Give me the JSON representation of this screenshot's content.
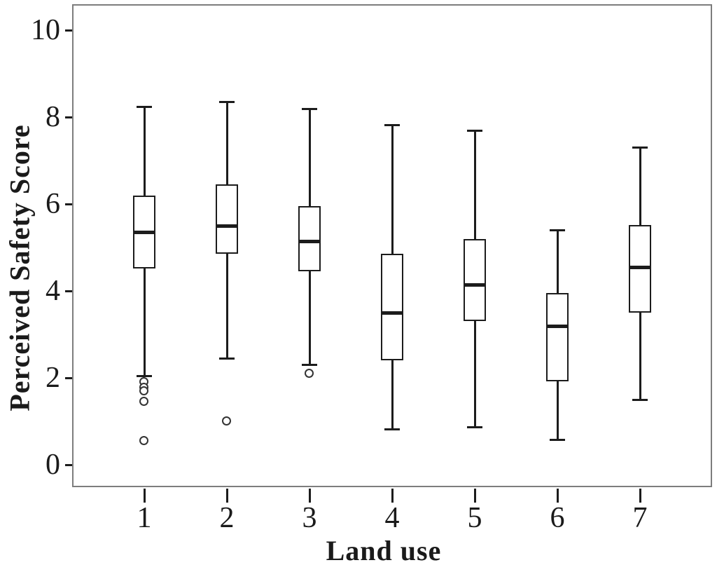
{
  "figure": {
    "type_label": "Box plot of Perceived Safety Score by Land use category"
  },
  "chart_data": {
    "type": "boxplot",
    "title": "",
    "xlabel": "Land use",
    "ylabel": "Perceived Safety Score",
    "ylim": [
      -0.9,
      10.6
    ],
    "y_ticks": [
      "0",
      "2",
      "4",
      "6",
      "8",
      "10"
    ],
    "y_tick_values": [
      0,
      2,
      4,
      6,
      8,
      10
    ],
    "grid": "off",
    "legend": "none",
    "categories": [
      "1",
      "2",
      "3",
      "4",
      "5",
      "6",
      "7"
    ],
    "series": [
      {
        "category": "1",
        "whisker_low": 2.05,
        "q1": 4.52,
        "median": 5.35,
        "q3": 6.2,
        "whisker_high": 8.25,
        "outliers": [
          1.9,
          1.78,
          1.7,
          1.45,
          0.55
        ]
      },
      {
        "category": "2",
        "whisker_low": 2.45,
        "q1": 4.85,
        "median": 5.5,
        "q3": 6.45,
        "whisker_high": 8.35,
        "outliers": [
          1.0
        ]
      },
      {
        "category": "3",
        "whisker_low": 2.3,
        "q1": 4.45,
        "median": 5.15,
        "q3": 5.95,
        "whisker_high": 8.2,
        "outliers": [
          2.1
        ]
      },
      {
        "category": "4",
        "whisker_low": 0.82,
        "q1": 2.4,
        "median": 3.5,
        "q3": 4.85,
        "whisker_high": 7.82,
        "outliers": []
      },
      {
        "category": "5",
        "whisker_low": 0.87,
        "q1": 3.3,
        "median": 4.15,
        "q3": 5.2,
        "whisker_high": 7.7,
        "outliers": []
      },
      {
        "category": "6",
        "whisker_low": 0.58,
        "q1": 1.92,
        "median": 3.2,
        "q3": 3.95,
        "whisker_high": 5.4,
        "outliers": []
      },
      {
        "category": "7",
        "whisker_low": 1.5,
        "q1": 3.5,
        "median": 4.55,
        "q3": 5.52,
        "whisker_high": 7.3,
        "outliers": []
      }
    ],
    "colors": {
      "line": "#1c1c1c",
      "box_fill": "#ffffff",
      "frame": "#7d7d7d",
      "background": "#ffffff"
    }
  }
}
